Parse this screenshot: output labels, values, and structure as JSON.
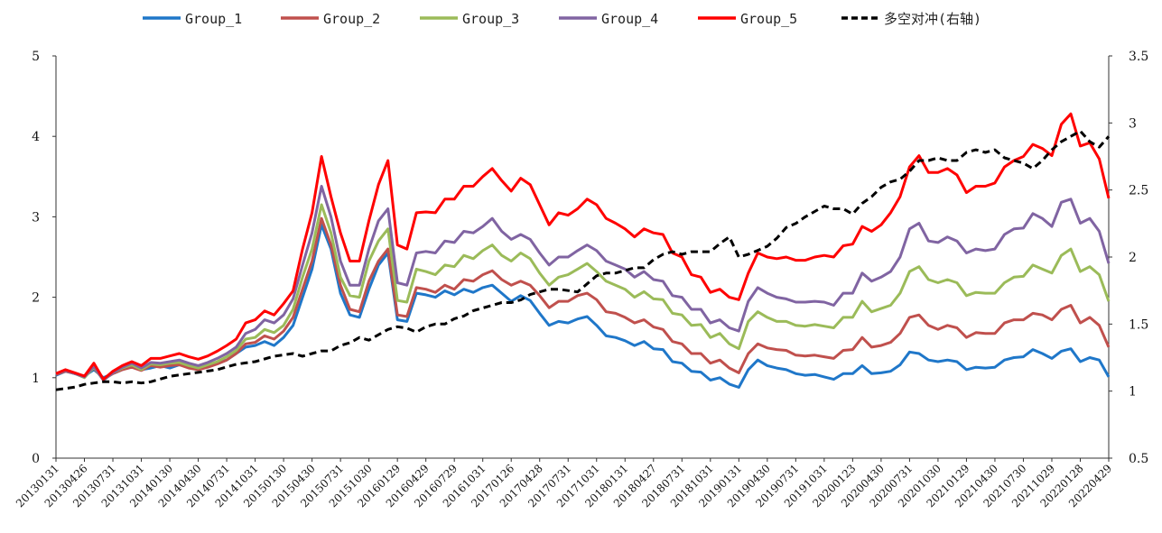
{
  "chart_data": {
    "type": "line",
    "title": "",
    "legend_position": "top",
    "grid": false,
    "y_left": {
      "min": 0,
      "max": 5,
      "ticks": [
        "0",
        "1",
        "2",
        "3",
        "4",
        "5"
      ]
    },
    "y_right": {
      "min": 0.5,
      "max": 3.5,
      "ticks": [
        "0.5",
        "1",
        "1.5",
        "2",
        "2.5",
        "3",
        "3.5"
      ]
    },
    "x_tick_labels": [
      "20130131",
      "20130426",
      "20130731",
      "20131031",
      "20140130",
      "20140430",
      "20140731",
      "20141031",
      "20150130",
      "20150430",
      "20150731",
      "20151030",
      "20160129",
      "20160429",
      "20160729",
      "20161031",
      "20170126",
      "20170428",
      "20170731",
      "20171031",
      "20180131",
      "20180427",
      "20180731",
      "20181031",
      "20190131",
      "20190430",
      "20190731",
      "20191031",
      "20200123",
      "20200430",
      "20200731",
      "20201030",
      "20210129",
      "20210430",
      "20210730",
      "20211029",
      "20220128",
      "20220429"
    ],
    "series": [
      {
        "name": "Group_1",
        "color": "#1f77c9",
        "axis": "left",
        "style": "solid",
        "values": [
          1.03,
          1.08,
          1.05,
          1.02,
          1.1,
          1.0,
          1.05,
          1.1,
          1.15,
          1.1,
          1.12,
          1.15,
          1.12,
          1.16,
          1.15,
          1.12,
          1.14,
          1.18,
          1.22,
          1.3,
          1.38,
          1.4,
          1.45,
          1.4,
          1.5,
          1.65,
          2.0,
          2.35,
          2.9,
          2.6,
          2.05,
          1.78,
          1.75,
          2.1,
          2.4,
          2.55,
          1.72,
          1.7,
          2.05,
          2.03,
          2.0,
          2.08,
          2.03,
          2.1,
          2.06,
          2.12,
          2.15,
          2.05,
          1.95,
          2.02,
          1.96,
          1.8,
          1.65,
          1.7,
          1.68,
          1.73,
          1.76,
          1.65,
          1.52,
          1.5,
          1.46,
          1.4,
          1.45,
          1.36,
          1.35,
          1.2,
          1.18,
          1.08,
          1.07,
          0.97,
          1.0,
          0.92,
          0.88,
          1.1,
          1.22,
          1.15,
          1.12,
          1.1,
          1.05,
          1.03,
          1.04,
          1.01,
          0.98,
          1.05,
          1.05,
          1.15,
          1.05,
          1.06,
          1.08,
          1.16,
          1.32,
          1.3,
          1.22,
          1.2,
          1.22,
          1.2,
          1.1,
          1.13,
          1.12,
          1.13,
          1.22,
          1.25,
          1.26,
          1.35,
          1.3,
          1.24,
          1.33,
          1.36,
          1.2,
          1.25,
          1.22,
          1.01
        ]
      },
      {
        "name": "Group_2",
        "color": "#c0504d",
        "axis": "left",
        "style": "solid",
        "values": [
          1.04,
          1.08,
          1.05,
          1.02,
          1.12,
          0.98,
          1.05,
          1.1,
          1.13,
          1.09,
          1.15,
          1.13,
          1.15,
          1.16,
          1.12,
          1.1,
          1.13,
          1.17,
          1.22,
          1.3,
          1.42,
          1.44,
          1.52,
          1.48,
          1.58,
          1.75,
          2.1,
          2.45,
          2.98,
          2.65,
          2.15,
          1.85,
          1.82,
          2.2,
          2.45,
          2.6,
          1.78,
          1.76,
          2.12,
          2.1,
          2.06,
          2.15,
          2.1,
          2.22,
          2.2,
          2.28,
          2.33,
          2.22,
          2.15,
          2.2,
          2.15,
          2.02,
          1.87,
          1.95,
          1.95,
          2.02,
          2.05,
          1.97,
          1.82,
          1.8,
          1.75,
          1.68,
          1.72,
          1.63,
          1.6,
          1.45,
          1.42,
          1.3,
          1.3,
          1.18,
          1.22,
          1.12,
          1.06,
          1.3,
          1.42,
          1.37,
          1.35,
          1.34,
          1.28,
          1.27,
          1.28,
          1.26,
          1.24,
          1.34,
          1.35,
          1.5,
          1.38,
          1.4,
          1.44,
          1.55,
          1.75,
          1.78,
          1.65,
          1.6,
          1.65,
          1.62,
          1.5,
          1.56,
          1.55,
          1.55,
          1.68,
          1.72,
          1.72,
          1.8,
          1.78,
          1.72,
          1.85,
          1.9,
          1.68,
          1.75,
          1.65,
          1.38
        ]
      },
      {
        "name": "Group_3",
        "color": "#9bbb59",
        "axis": "left",
        "style": "solid",
        "values": [
          1.05,
          1.09,
          1.05,
          1.0,
          1.13,
          0.97,
          1.06,
          1.12,
          1.16,
          1.1,
          1.17,
          1.16,
          1.18,
          1.19,
          1.15,
          1.12,
          1.16,
          1.2,
          1.26,
          1.34,
          1.48,
          1.5,
          1.6,
          1.56,
          1.65,
          1.85,
          2.25,
          2.6,
          3.15,
          2.8,
          2.25,
          2.02,
          2.0,
          2.45,
          2.7,
          2.85,
          1.96,
          1.94,
          2.35,
          2.32,
          2.28,
          2.4,
          2.38,
          2.52,
          2.48,
          2.58,
          2.65,
          2.52,
          2.45,
          2.55,
          2.48,
          2.3,
          2.15,
          2.25,
          2.28,
          2.35,
          2.42,
          2.32,
          2.2,
          2.15,
          2.1,
          2.0,
          2.07,
          1.98,
          1.97,
          1.8,
          1.78,
          1.65,
          1.66,
          1.5,
          1.55,
          1.42,
          1.36,
          1.7,
          1.82,
          1.75,
          1.7,
          1.7,
          1.65,
          1.64,
          1.66,
          1.64,
          1.62,
          1.75,
          1.75,
          1.95,
          1.82,
          1.86,
          1.9,
          2.05,
          2.32,
          2.38,
          2.22,
          2.18,
          2.22,
          2.18,
          2.02,
          2.06,
          2.05,
          2.05,
          2.18,
          2.25,
          2.26,
          2.4,
          2.35,
          2.3,
          2.52,
          2.6,
          2.32,
          2.38,
          2.28,
          1.95
        ]
      },
      {
        "name": "Group_4",
        "color": "#8064a2",
        "axis": "left",
        "style": "solid",
        "values": [
          1.05,
          1.09,
          1.05,
          1.01,
          1.14,
          0.97,
          1.06,
          1.13,
          1.18,
          1.12,
          1.19,
          1.18,
          1.2,
          1.22,
          1.18,
          1.15,
          1.19,
          1.24,
          1.3,
          1.38,
          1.55,
          1.6,
          1.72,
          1.68,
          1.78,
          1.98,
          2.4,
          2.8,
          3.38,
          3.0,
          2.45,
          2.15,
          2.15,
          2.6,
          2.95,
          3.1,
          2.18,
          2.15,
          2.55,
          2.57,
          2.55,
          2.7,
          2.68,
          2.82,
          2.8,
          2.88,
          2.98,
          2.82,
          2.72,
          2.78,
          2.72,
          2.55,
          2.4,
          2.5,
          2.5,
          2.58,
          2.65,
          2.58,
          2.45,
          2.4,
          2.35,
          2.25,
          2.32,
          2.22,
          2.2,
          2.02,
          2.0,
          1.85,
          1.85,
          1.68,
          1.72,
          1.62,
          1.58,
          1.95,
          2.12,
          2.05,
          2.0,
          1.98,
          1.94,
          1.94,
          1.95,
          1.94,
          1.9,
          2.05,
          2.05,
          2.3,
          2.2,
          2.25,
          2.32,
          2.5,
          2.85,
          2.92,
          2.7,
          2.68,
          2.75,
          2.7,
          2.55,
          2.6,
          2.58,
          2.6,
          2.78,
          2.85,
          2.86,
          3.04,
          2.98,
          2.88,
          3.18,
          3.22,
          2.92,
          2.98,
          2.82,
          2.42
        ]
      },
      {
        "name": "Group_5",
        "color": "#ff0000",
        "axis": "left",
        "style": "solid",
        "values": [
          1.05,
          1.1,
          1.06,
          1.02,
          1.18,
          0.98,
          1.08,
          1.15,
          1.2,
          1.15,
          1.24,
          1.24,
          1.27,
          1.3,
          1.26,
          1.23,
          1.27,
          1.33,
          1.4,
          1.48,
          1.68,
          1.72,
          1.83,
          1.78,
          1.92,
          2.08,
          2.6,
          3.05,
          3.75,
          3.25,
          2.8,
          2.45,
          2.45,
          2.95,
          3.4,
          3.7,
          2.65,
          2.6,
          3.05,
          3.06,
          3.05,
          3.22,
          3.22,
          3.38,
          3.38,
          3.5,
          3.6,
          3.45,
          3.32,
          3.48,
          3.4,
          3.15,
          2.9,
          3.05,
          3.02,
          3.1,
          3.22,
          3.15,
          2.98,
          2.92,
          2.85,
          2.75,
          2.85,
          2.8,
          2.78,
          2.55,
          2.5,
          2.28,
          2.25,
          2.06,
          2.1,
          2.0,
          1.97,
          2.3,
          2.55,
          2.5,
          2.48,
          2.5,
          2.46,
          2.46,
          2.5,
          2.52,
          2.5,
          2.64,
          2.66,
          2.88,
          2.82,
          2.9,
          3.05,
          3.25,
          3.62,
          3.76,
          3.55,
          3.55,
          3.6,
          3.52,
          3.3,
          3.38,
          3.38,
          3.42,
          3.62,
          3.7,
          3.75,
          3.9,
          3.85,
          3.76,
          4.15,
          4.28,
          3.88,
          3.92,
          3.72,
          3.23
        ]
      },
      {
        "name": "多空对冲(右轴)",
        "color": "#000000",
        "axis": "right",
        "style": "dashed",
        "values": [
          1.01,
          1.02,
          1.03,
          1.05,
          1.06,
          1.07,
          1.07,
          1.06,
          1.07,
          1.06,
          1.07,
          1.09,
          1.11,
          1.12,
          1.13,
          1.14,
          1.15,
          1.16,
          1.18,
          1.2,
          1.21,
          1.22,
          1.24,
          1.26,
          1.27,
          1.28,
          1.26,
          1.28,
          1.3,
          1.3,
          1.34,
          1.36,
          1.4,
          1.38,
          1.42,
          1.46,
          1.48,
          1.47,
          1.44,
          1.48,
          1.5,
          1.5,
          1.54,
          1.56,
          1.6,
          1.62,
          1.64,
          1.66,
          1.66,
          1.68,
          1.72,
          1.74,
          1.76,
          1.76,
          1.75,
          1.74,
          1.8,
          1.86,
          1.88,
          1.88,
          1.9,
          1.92,
          1.92,
          1.98,
          2.02,
          2.04,
          2.02,
          2.04,
          2.04,
          2.04,
          2.1,
          2.15,
          2.0,
          2.02,
          2.05,
          2.08,
          2.14,
          2.22,
          2.25,
          2.3,
          2.34,
          2.38,
          2.36,
          2.36,
          2.32,
          2.4,
          2.45,
          2.52,
          2.56,
          2.58,
          2.64,
          2.72,
          2.72,
          2.74,
          2.72,
          2.72,
          2.78,
          2.8,
          2.78,
          2.8,
          2.74,
          2.72,
          2.7,
          2.66,
          2.72,
          2.8,
          2.86,
          2.9,
          2.94,
          2.86,
          2.82,
          2.9
        ]
      }
    ]
  }
}
